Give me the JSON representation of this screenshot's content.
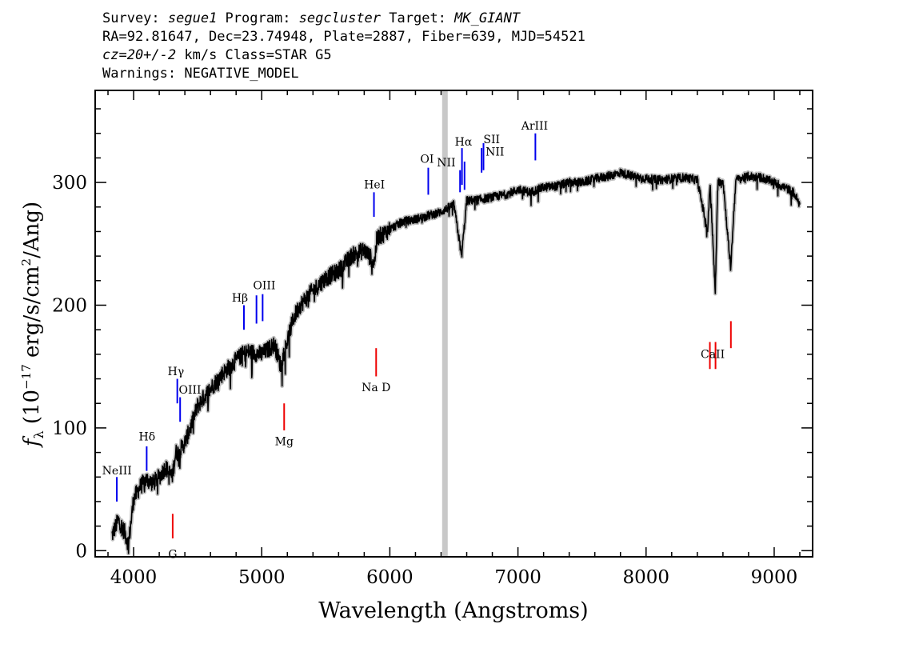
{
  "header": {
    "line1": {
      "survey_label": "Survey: ",
      "survey": "segue1",
      "program_label": " Program: ",
      "program": "segcluster",
      "target_label": " Target: ",
      "target": "MK_GIANT"
    },
    "line2": "RA=92.81647, Dec=23.74948, Plate=2887, Fiber=639, MJD=54521",
    "line3": {
      "cz": "cz=20+/-2",
      "rest": " km/s Class=STAR G5"
    },
    "line4": "Warnings: NEGATIVE_MODEL"
  },
  "chart_data": {
    "type": "line",
    "xlabel": "Wavelength (Angstroms)",
    "ylabel": "f_λ (10^-17 erg/s/cm^2/Ang)",
    "xlim": [
      3700,
      9300
    ],
    "ylim": [
      -5,
      375
    ],
    "x_ticks": [
      4000,
      5000,
      6000,
      7000,
      8000,
      9000
    ],
    "y_ticks": [
      0,
      100,
      200,
      300
    ],
    "grid": false,
    "series": [
      {
        "color": "#000000",
        "x": [
          3830,
          3880,
          3930,
          3960,
          4000,
          4050,
          4100,
          4150,
          4200,
          4250,
          4300,
          4330,
          4350,
          4400,
          4450,
          4500,
          4600,
          4700,
          4800,
          4850,
          4900,
          5000,
          5100,
          5150,
          5170,
          5250,
          5300,
          5400,
          5500,
          5600,
          5700,
          5800,
          5880,
          5900,
          5950,
          6000,
          6100,
          6200,
          6300,
          6400,
          6500,
          6560,
          6600,
          6700,
          6800,
          6900,
          7000,
          7100,
          7200,
          7300,
          7400,
          7500,
          7600,
          7700,
          7800,
          7900,
          8000,
          8100,
          8200,
          8300,
          8400,
          8480,
          8500,
          8540,
          8560,
          8600,
          8660,
          8700,
          8800,
          8900,
          9000,
          9100,
          9150,
          9200
        ],
        "y": [
          12,
          25,
          15,
          5,
          42,
          52,
          58,
          55,
          60,
          68,
          60,
          80,
          80,
          88,
          102,
          118,
          132,
          145,
          155,
          160,
          162,
          160,
          168,
          150,
          160,
          190,
          200,
          212,
          222,
          228,
          240,
          245,
          235,
          255,
          258,
          262,
          268,
          270,
          273,
          276,
          282,
          240,
          285,
          286,
          288,
          290,
          294,
          292,
          296,
          297,
          300,
          300,
          303,
          305,
          308,
          305,
          303,
          302,
          303,
          304,
          302,
          260,
          300,
          210,
          300,
          302,
          230,
          302,
          305,
          304,
          300,
          295,
          292,
          282
        ]
      }
    ],
    "masked_region": {
      "x": 6430,
      "color": "#c8c8c8"
    },
    "emission_lines": [
      {
        "name": "NeIII",
        "wavelength": 3869,
        "y": [
          40,
          60
        ],
        "color": "#0000ee"
      },
      {
        "name": "Hδ",
        "wavelength": 4102,
        "y": [
          65,
          85
        ],
        "color": "#0000ee"
      },
      {
        "name": "Hγ",
        "wavelength": 4341,
        "y": [
          120,
          140
        ],
        "color": "#0000ee"
      },
      {
        "name": "OIII",
        "wavelength": 4363,
        "y": [
          105,
          125
        ],
        "color": "#0000ee"
      },
      {
        "name": "Hβ",
        "wavelength": 4861,
        "y": [
          180,
          200
        ],
        "color": "#0000ee"
      },
      {
        "name": "OIII",
        "wavelength": 4959,
        "y": [
          185,
          208
        ],
        "color": "#0000ee"
      },
      {
        "name": "OIII",
        "wavelength": 5007,
        "y": [
          187,
          209
        ],
        "color": "#0000ee"
      },
      {
        "name": "HeI",
        "wavelength": 5876,
        "y": [
          272,
          292
        ],
        "color": "#0000ee"
      },
      {
        "name": "OI",
        "wavelength": 6300,
        "y": [
          290,
          312
        ],
        "color": "#0000ee"
      },
      {
        "name": "NII",
        "wavelength": 6548,
        "y": [
          292,
          310
        ],
        "color": "#0000ee"
      },
      {
        "name": "Hα",
        "wavelength": 6563,
        "y": [
          298,
          328
        ],
        "color": "#0000ee"
      },
      {
        "name": "NII",
        "wavelength": 6583,
        "y": [
          294,
          317
        ],
        "color": "#0000ee"
      },
      {
        "name": "SII",
        "wavelength": 6716,
        "y": [
          308,
          328
        ],
        "color": "#0000ee"
      },
      {
        "name": "SII",
        "wavelength": 6731,
        "y": [
          310,
          332
        ],
        "color": "#0000ee"
      },
      {
        "name": "ArIII",
        "wavelength": 7136,
        "y": [
          318,
          340
        ],
        "color": "#0000ee"
      }
    ],
    "emission_labels": [
      {
        "text": "NeIII",
        "x": 3870,
        "y": 62
      },
      {
        "text": "Hδ",
        "x": 4105,
        "y": 90
      },
      {
        "text": "Hγ",
        "x": 4330,
        "y": 143
      },
      {
        "text": "OIII",
        "x": 4440,
        "y": 128
      },
      {
        "text": "Hβ",
        "x": 4830,
        "y": 203
      },
      {
        "text": "OIII",
        "x": 5020,
        "y": 213
      },
      {
        "text": "HeI",
        "x": 5880,
        "y": 295
      },
      {
        "text": "OI",
        "x": 6290,
        "y": 316
      },
      {
        "text": "NII",
        "x": 6440,
        "y": 313
      },
      {
        "text": "Hα",
        "x": 6575,
        "y": 330
      },
      {
        "text": "SII",
        "x": 6795,
        "y": 332
      },
      {
        "text": "NII",
        "x": 6820,
        "y": 322
      },
      {
        "text": "ArIII",
        "x": 7130,
        "y": 343
      }
    ],
    "absorption_lines": [
      {
        "name": "G",
        "wavelength": 4305,
        "y": [
          10,
          30
        ],
        "color": "#ee0000"
      },
      {
        "name": "Mg",
        "wavelength": 5175,
        "y": [
          98,
          120
        ],
        "color": "#ee0000"
      },
      {
        "name": "Na D",
        "wavelength": 5893,
        "y": [
          142,
          165
        ],
        "color": "#ee0000"
      },
      {
        "name": "CaII",
        "wavelength": 8498,
        "y": [
          148,
          170
        ],
        "color": "#ee0000"
      },
      {
        "name": "CaII",
        "wavelength": 8542,
        "y": [
          148,
          170
        ],
        "color": "#ee0000"
      },
      {
        "name": "CaII",
        "wavelength": 8662,
        "y": [
          165,
          187
        ],
        "color": "#ee0000"
      }
    ],
    "absorption_labels": [
      {
        "text": "G",
        "x": 4305,
        "y": -6
      },
      {
        "text": "Mg",
        "x": 5175,
        "y": 86
      },
      {
        "text": "Na D",
        "x": 5893,
        "y": 130
      },
      {
        "text": "CaII",
        "x": 8520,
        "y": 157
      }
    ]
  }
}
